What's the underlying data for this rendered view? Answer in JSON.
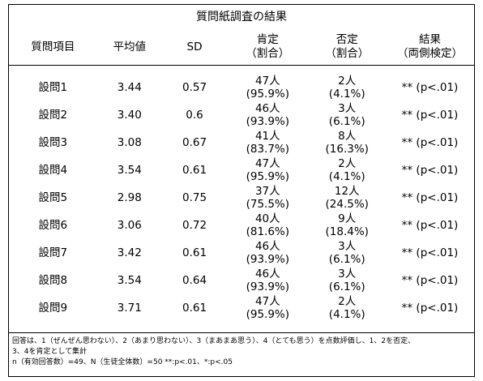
{
  "title": "質問紙調査の結果",
  "table": {
    "headers": [
      [
        "質問項目"
      ],
      [
        "平均値"
      ],
      [
        "SD"
      ],
      [
        "肯定",
        "（割合）"
      ],
      [
        "否定",
        "（割合）"
      ],
      [
        "結果",
        "（両側検定）"
      ]
    ],
    "rows": [
      [
        "設問1",
        "3.44",
        "0.57",
        [
          "47人",
          "(95.9%)"
        ],
        [
          "2人",
          "(4.1%)"
        ],
        "** (p<.01)"
      ],
      [
        "設問2",
        "3.40",
        "0.6",
        [
          "46人",
          "(93.9%)"
        ],
        [
          "3人",
          "(6.1%)"
        ],
        "** (p<.01)"
      ],
      [
        "設問3",
        "3.08",
        "0.67",
        [
          "41人",
          "(83.7%)"
        ],
        [
          "8人",
          "(16.3%)"
        ],
        "** (p<.01)"
      ],
      [
        "設問4",
        "3.54",
        "0.61",
        [
          "47人",
          "(95.9%)"
        ],
        [
          "2人",
          "(4.1%)"
        ],
        "** (p<.01)"
      ],
      [
        "設問5",
        "2.98",
        "0.75",
        [
          "37人",
          "(75.5%)"
        ],
        [
          "12人",
          "(24.5%)"
        ],
        "** (p<.01)"
      ],
      [
        "設問6",
        "3.06",
        "0.72",
        [
          "40人",
          "(81.6%)"
        ],
        [
          "9人",
          "(18.4%)"
        ],
        "** (p<.01)"
      ],
      [
        "設問7",
        "3.42",
        "0.61",
        [
          "46人",
          "(93.9%)"
        ],
        [
          "3人",
          "(6.1%)"
        ],
        "** (p<.01)"
      ],
      [
        "設問8",
        "3.54",
        "0.64",
        [
          "46人",
          "(93.9%)"
        ],
        [
          "3人",
          "(6.1%)"
        ],
        "** (p<.01)"
      ],
      [
        "設問9",
        "3.71",
        "0.61",
        [
          "47人",
          "(95.9%)"
        ],
        [
          "2人",
          "(4.1%)"
        ],
        "** (p<.01)"
      ]
    ]
  },
  "notes": [
    "回答は、1（ぜんぜん思わない）、2（あまり思わない）、3（まあまあ思う）、4（とても思う）を点数評価し、1、2を否定、",
    "3、4を肯定として集計",
    "n（有効回答数）=49、N（生徒全体数）=50 **:p<.01、*:p<.05"
  ]
}
